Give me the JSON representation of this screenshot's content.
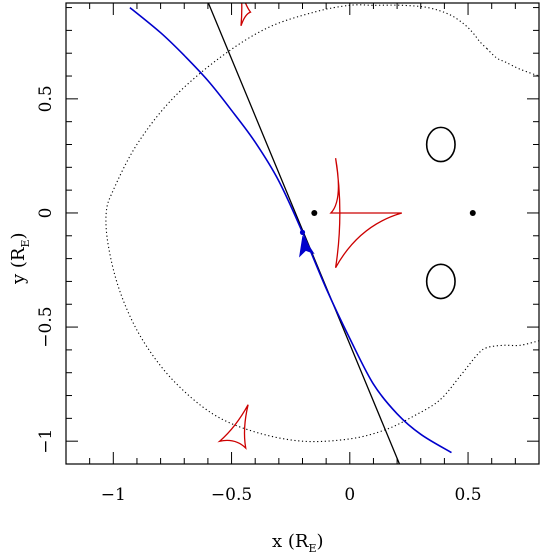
{
  "chart_data": {
    "type": "scatter",
    "title": "",
    "xlabel": "x (R",
    "xlabel_sub": "E",
    "xlabel_close": ")",
    "ylabel": "y (R",
    "ylabel_sub": "E",
    "ylabel_close": ")",
    "xlim": [
      -1.2,
      0.8
    ],
    "ylim": [
      -1.1,
      0.92
    ],
    "xticks_major": [
      -1,
      -0.5,
      0,
      0.5
    ],
    "xtick_labels": [
      "−1",
      "−0.5",
      "0",
      "0.5"
    ],
    "yticks_major": [
      -1,
      -0.5,
      0,
      0.5
    ],
    "ytick_labels": [
      "−1",
      "−0.5",
      "0",
      "0.5"
    ],
    "minor_step": 0.1,
    "grid": false,
    "colors": {
      "source_track": "#0000cc",
      "caustics": "#cc0000",
      "critical_curve": "#000000",
      "straight_line": "#000000",
      "lens_points": "#000000"
    },
    "lens_positions": [
      [
        -0.15,
        0.0
      ],
      [
        0.52,
        0.0
      ]
    ],
    "source_position": [
      -0.2,
      -0.085
    ],
    "arrow_tip": [
      -0.19,
      -0.1
    ],
    "straight_line": [
      [
        -0.61,
        0.95
      ],
      [
        0.21,
        -1.1
      ]
    ],
    "source_track_points": [
      [
        -0.93,
        0.9
      ],
      [
        -0.8,
        0.79
      ],
      [
        -0.7,
        0.69
      ],
      [
        -0.6,
        0.58
      ],
      [
        -0.5,
        0.45
      ],
      [
        -0.4,
        0.31
      ],
      [
        -0.3,
        0.14
      ],
      [
        -0.2,
        -0.085
      ],
      [
        -0.1,
        -0.33
      ],
      [
        0.0,
        -0.55
      ],
      [
        0.1,
        -0.75
      ],
      [
        0.2,
        -0.88
      ],
      [
        0.3,
        -0.97
      ],
      [
        0.43,
        -1.05
      ]
    ],
    "critical_curve_outer": [
      [
        0.58,
        0.72
      ],
      [
        0.55,
        0.75
      ],
      [
        0.52,
        0.79
      ],
      [
        0.48,
        0.83
      ],
      [
        0.42,
        0.87
      ],
      [
        0.33,
        0.9
      ],
      [
        0.22,
        0.91
      ],
      [
        0.1,
        0.91
      ],
      [
        0.0,
        0.91
      ],
      [
        -0.15,
        0.88
      ],
      [
        -0.35,
        0.81
      ],
      [
        -0.55,
        0.68
      ],
      [
        -0.75,
        0.5
      ],
      [
        -0.9,
        0.3
      ],
      [
        -1.0,
        0.1
      ],
      [
        -1.03,
        0.0
      ],
      [
        -1.02,
        -0.15
      ],
      [
        -0.97,
        -0.35
      ],
      [
        -0.88,
        -0.55
      ],
      [
        -0.75,
        -0.73
      ],
      [
        -0.58,
        -0.88
      ],
      [
        -0.4,
        -0.96
      ],
      [
        -0.2,
        -1.0
      ],
      [
        0.0,
        -0.99
      ],
      [
        0.15,
        -0.95
      ],
      [
        0.27,
        -0.89
      ],
      [
        0.38,
        -0.82
      ],
      [
        0.47,
        -0.71
      ],
      [
        0.54,
        -0.62
      ],
      [
        0.58,
        -0.59
      ],
      [
        0.65,
        -0.58
      ],
      [
        0.72,
        -0.58
      ],
      [
        0.8,
        -0.56
      ]
    ],
    "critical_curve_tail_upper": [
      [
        0.58,
        0.72
      ],
      [
        0.62,
        0.68
      ],
      [
        0.66,
        0.66
      ],
      [
        0.72,
        0.63
      ],
      [
        0.8,
        0.6
      ]
    ],
    "critical_loops": [
      {
        "cx": 0.385,
        "cy": 0.3,
        "rx": 0.06,
        "ry": 0.075
      },
      {
        "cx": 0.385,
        "cy": -0.3,
        "rx": 0.06,
        "ry": 0.075
      }
    ],
    "central_caustic_cusps": [
      [
        -0.06,
        0.24
      ],
      [
        -0.06,
        -0.24
      ],
      [
        0.22,
        0.0
      ],
      [
        -0.08,
        0.0
      ]
    ],
    "lower_caustic_cusps": [
      [
        -0.55,
        -1.0
      ],
      [
        -0.43,
        -0.84
      ],
      [
        -0.44,
        -1.03
      ]
    ],
    "upper_caustic_cusps": [
      [
        -0.46,
        0.98
      ],
      [
        -0.42,
        0.88
      ],
      [
        -0.46,
        0.82
      ]
    ]
  }
}
